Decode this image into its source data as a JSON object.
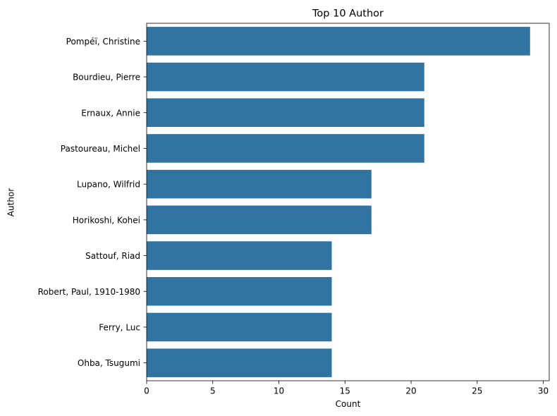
{
  "chart_data": {
    "type": "bar",
    "orientation": "horizontal",
    "title": "Top 10 Author",
    "xlabel": "Count",
    "ylabel": "Author",
    "categories": [
      "Pompéï, Christine",
      "Bourdieu, Pierre",
      "Ernaux, Annie",
      "Pastoureau, Michel",
      "Lupano, Wilfrid",
      "Horikoshi, Kohei",
      "Sattouf, Riad",
      "Robert, Paul, 1910-1980",
      "Ferry, Luc",
      "Ohba, Tsugumi"
    ],
    "values": [
      29,
      21,
      21,
      21,
      17,
      17,
      14,
      14,
      14,
      14
    ],
    "xlim": [
      0,
      30.45
    ],
    "xticks": [
      0,
      5,
      10,
      15,
      20,
      25,
      30
    ],
    "grid": false,
    "bar_color": "#3274a1"
  }
}
